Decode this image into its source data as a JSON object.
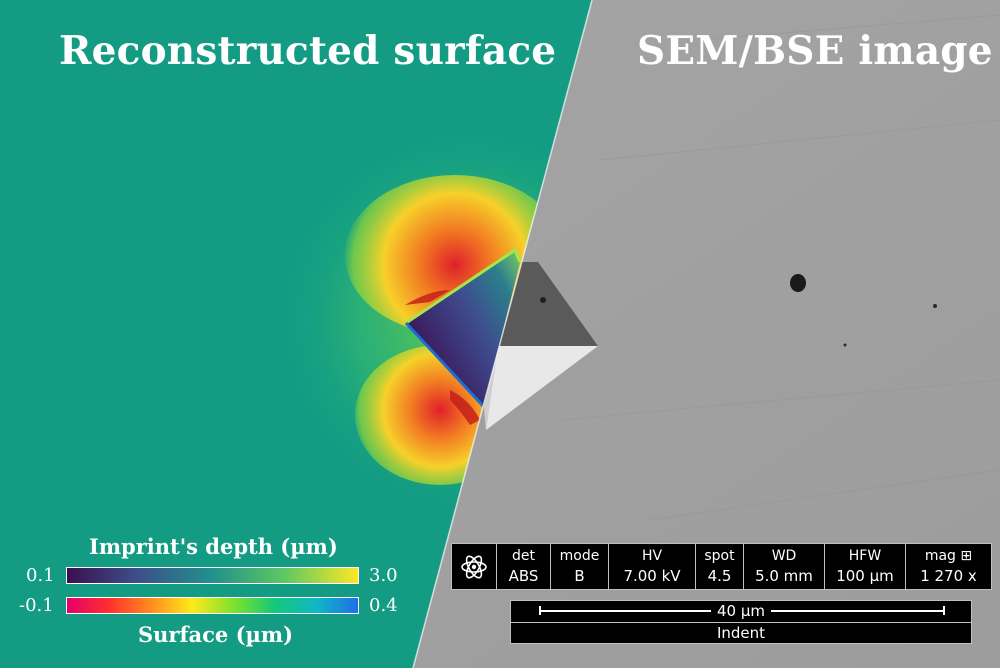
{
  "titles": {
    "left": "Reconstructed surface",
    "right": "SEM/BSE image"
  },
  "colorbars": {
    "depth": {
      "label": "Imprint's depth (µm)",
      "min": "0.1",
      "max": "3.0"
    },
    "surface": {
      "label": "Surface (µm)",
      "min": "-0.1",
      "max": "0.4"
    }
  },
  "sem_info": {
    "columns": [
      {
        "key": "det",
        "value": "ABS"
      },
      {
        "key": "mode",
        "value": "B"
      },
      {
        "key": "HV",
        "value": "7.00 kV"
      },
      {
        "key": "spot",
        "value": "4.5"
      },
      {
        "key": "WD",
        "value": "5.0 mm"
      },
      {
        "key": "HFW",
        "value": "100 µm"
      },
      {
        "key": "mag ⊞",
        "value": "1 270 x"
      }
    ],
    "scale_bar": "40 µm",
    "caption": "Indent"
  },
  "icons": [
    "atom-logo-icon"
  ],
  "colors": {
    "surface_bg": "#15a383",
    "sem_bg": "#a2a2a2",
    "panel": "#000000",
    "text": "#ffffff"
  }
}
